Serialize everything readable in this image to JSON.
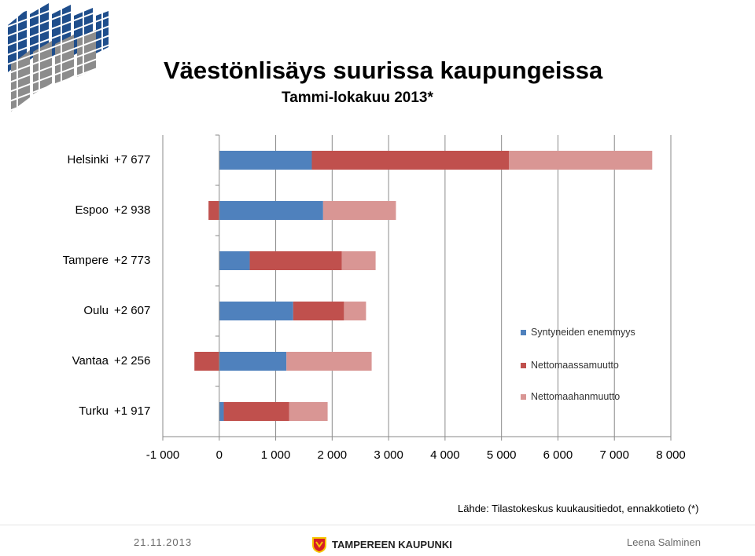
{
  "header": {
    "title": "Väestönlisäys suurissa kaupungeissa",
    "subtitle": "Tammi-lokakuu 2013*"
  },
  "chart_data": {
    "type": "bar",
    "orientation": "horizontal",
    "stacked": true,
    "categories": [
      "Helsinki",
      "Espoo",
      "Tampere",
      "Oulu",
      "Vantaa",
      "Turku"
    ],
    "totals": [
      "+7 677",
      "+2 938",
      "+2 773",
      "+2 607",
      "+2 256",
      "+1 917"
    ],
    "series": [
      {
        "name": "Syntyneiden enemmyys",
        "color": "#4f81bd",
        "values": [
          1640,
          1840,
          540,
          1310,
          1190,
          80
        ]
      },
      {
        "name": "Nettomaassamuutto",
        "color": "#c0504d",
        "values": [
          3490,
          -190,
          1630,
          900,
          -440,
          1160
        ]
      },
      {
        "name": "Nettomaahanmuutto",
        "color": "#d99694",
        "values": [
          2540,
          1290,
          600,
          390,
          1510,
          680
        ]
      }
    ],
    "xlim": [
      -1000,
      8000
    ],
    "xticks": [
      -1000,
      0,
      1000,
      2000,
      3000,
      4000,
      5000,
      6000,
      7000,
      8000
    ],
    "xtick_labels": [
      "-1 000",
      "0",
      "1 000",
      "2 000",
      "3 000",
      "4 000",
      "5 000",
      "6 000",
      "7 000",
      "8 000"
    ],
    "grid": "vertical",
    "legend_position": "right"
  },
  "source": "Lähde: Tilastokeskus kuukausitiedot, ennakkotieto (*)",
  "footer": {
    "date": "21.11.2013",
    "brand": "TAMPEREEN KAUPUNKI",
    "author": "Leena Salminen"
  },
  "colors": {
    "logo_blue": "#1f4e8c",
    "logo_gray": "#8c8c8c",
    "brand_red": "#d61f26",
    "brand_yellow": "#f7c600"
  }
}
